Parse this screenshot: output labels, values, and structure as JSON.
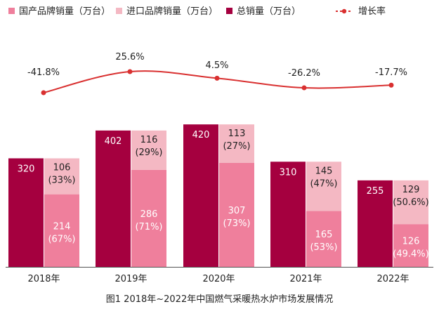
{
  "chart_data": {
    "type": "bar",
    "categories": [
      "2018年",
      "2019年",
      "2020年",
      "2021年",
      "2022年"
    ],
    "series": [
      {
        "name": "国产品牌销量（万台）",
        "values": [
          214,
          286,
          307,
          165,
          126
        ],
        "share_labels": [
          "(67%)",
          "(71%)",
          "(73%)",
          "(53%)",
          "(49.4%)"
        ],
        "color": "#ef7f9c"
      },
      {
        "name": "进口品牌销量（万台）",
        "values": [
          106,
          116,
          113,
          145,
          129
        ],
        "share_labels": [
          "(33%)",
          "(29%)",
          "(27%)",
          "(47%)",
          "(50.6%)"
        ],
        "color": "#f4b8c3"
      },
      {
        "name": "总销量（万台）",
        "values": [
          320,
          402,
          420,
          310,
          255
        ],
        "color": "#a5003f"
      },
      {
        "name": "增长率",
        "values": [
          -41.8,
          25.6,
          4.5,
          -26.2,
          -17.7
        ],
        "value_labels": [
          "-41.8%",
          "25.6%",
          "4.5%",
          "-26.2%",
          "-17.7%"
        ],
        "color": "#d93030"
      }
    ],
    "stacked": [
      "国产品牌销量（万台）",
      "进口品牌销量（万台）"
    ],
    "legend_position": "top",
    "grid": false
  },
  "caption": "图1  2018年~2022年中国燃气采暖热水炉市场发展情况"
}
